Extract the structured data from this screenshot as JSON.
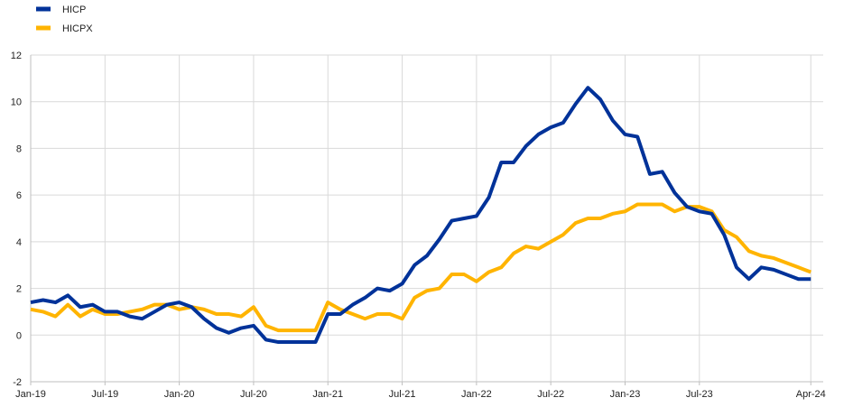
{
  "chart_data": {
    "type": "line",
    "title": "",
    "xlabel": "",
    "ylabel": "",
    "ylim": [
      -2,
      12
    ],
    "yticks": [
      -2,
      0,
      2,
      4,
      6,
      8,
      10,
      12
    ],
    "grid": true,
    "legend_position": "top-left",
    "x_tick_labels": [
      "Jan-19",
      "Jul-19",
      "Jan-20",
      "Jul-20",
      "Jan-21",
      "Jul-21",
      "Jan-22",
      "Jul-22",
      "Jan-23",
      "Jul-23",
      "Apr-24"
    ],
    "x_tick_months": [
      0,
      6,
      12,
      18,
      24,
      30,
      36,
      42,
      48,
      54,
      63
    ],
    "x_range_months": [
      0,
      64
    ],
    "series": [
      {
        "name": "HICP",
        "color": "#003299",
        "values": [
          1.4,
          1.5,
          1.4,
          1.7,
          1.2,
          1.3,
          1.0,
          1.0,
          0.8,
          0.7,
          1.0,
          1.3,
          1.4,
          1.2,
          0.7,
          0.3,
          0.1,
          0.3,
          0.4,
          -0.2,
          -0.3,
          -0.3,
          -0.3,
          -0.3,
          0.9,
          0.9,
          1.3,
          1.6,
          2.0,
          1.9,
          2.2,
          3.0,
          3.4,
          4.1,
          4.9,
          5.0,
          5.1,
          5.9,
          7.4,
          7.4,
          8.1,
          8.6,
          8.9,
          9.1,
          9.9,
          10.6,
          10.1,
          9.2,
          8.6,
          8.5,
          6.9,
          7.0,
          6.1,
          5.5,
          5.3,
          5.2,
          4.3,
          2.9,
          2.4,
          2.9,
          2.8,
          2.6,
          2.4,
          2.4
        ]
      },
      {
        "name": "HICPX",
        "color": "#FFB400",
        "values": [
          1.1,
          1.0,
          0.8,
          1.3,
          0.8,
          1.1,
          0.9,
          0.9,
          1.0,
          1.1,
          1.3,
          1.3,
          1.1,
          1.2,
          1.1,
          0.9,
          0.9,
          0.8,
          1.2,
          0.4,
          0.2,
          0.2,
          0.2,
          0.2,
          1.4,
          1.1,
          0.9,
          0.7,
          0.9,
          0.9,
          0.7,
          1.6,
          1.9,
          2.0,
          2.6,
          2.6,
          2.3,
          2.7,
          2.9,
          3.5,
          3.8,
          3.7,
          4.0,
          4.3,
          4.8,
          5.0,
          5.0,
          5.2,
          5.3,
          5.6,
          5.6,
          5.6,
          5.3,
          5.5,
          5.5,
          5.3,
          4.5,
          4.2,
          3.6,
          3.4,
          3.3,
          3.1,
          2.9,
          2.7
        ]
      }
    ]
  }
}
